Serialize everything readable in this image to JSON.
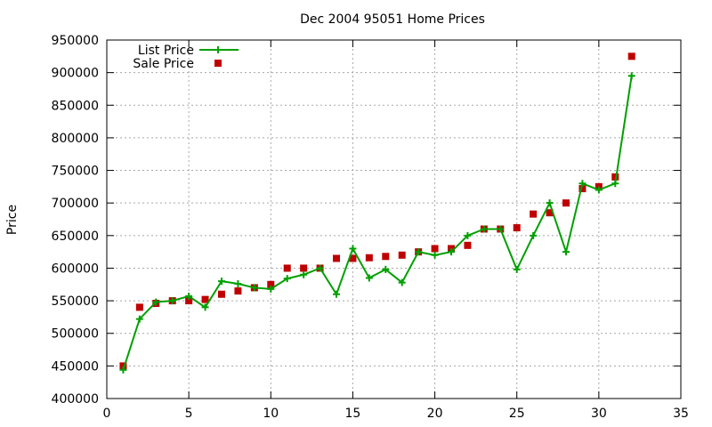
{
  "chart_data": {
    "type": "line",
    "title": "Dec 2004 95051 Home Prices",
    "xlabel": "",
    "ylabel": "Price",
    "xlim": [
      0,
      35
    ],
    "ylim": [
      400000,
      950000
    ],
    "x_ticks": [
      0,
      5,
      10,
      15,
      20,
      25,
      30,
      35
    ],
    "y_ticks": [
      400000,
      450000,
      500000,
      550000,
      600000,
      650000,
      700000,
      750000,
      800000,
      850000,
      900000,
      950000
    ],
    "grid": true,
    "legend_position": "top-left",
    "series": [
      {
        "name": "List Price",
        "style": "line-with-plus-markers",
        "color": "#00a000",
        "x": [
          1,
          2,
          3,
          4,
          5,
          6,
          7,
          8,
          9,
          10,
          11,
          12,
          13,
          14,
          15,
          16,
          17,
          18,
          19,
          20,
          21,
          22,
          23,
          24,
          25,
          26,
          27,
          28,
          29,
          30,
          31,
          32
        ],
        "y": [
          444000,
          522000,
          548000,
          550000,
          557000,
          540000,
          580000,
          576000,
          570000,
          568000,
          584000,
          590000,
          600000,
          560000,
          630000,
          585000,
          598000,
          578000,
          625000,
          620000,
          625000,
          650000,
          660000,
          660000,
          598000,
          650000,
          700000,
          625000,
          730000,
          720000,
          730000,
          895000
        ]
      },
      {
        "name": "Sale Price",
        "style": "square-markers",
        "color": "#c00000",
        "x": [
          1,
          2,
          3,
          4,
          5,
          6,
          7,
          8,
          9,
          10,
          11,
          12,
          13,
          14,
          15,
          16,
          17,
          18,
          19,
          20,
          21,
          22,
          23,
          24,
          25,
          26,
          27,
          28,
          29,
          30,
          31,
          32
        ],
        "y": [
          450000,
          540000,
          546000,
          550000,
          550000,
          552000,
          560000,
          565000,
          570000,
          575000,
          600000,
          600000,
          600000,
          615000,
          615000,
          616000,
          618000,
          620000,
          625000,
          630000,
          630000,
          635000,
          660000,
          660000,
          662000,
          683000,
          685000,
          700000,
          722000,
          725000,
          740000,
          925000
        ]
      }
    ]
  }
}
